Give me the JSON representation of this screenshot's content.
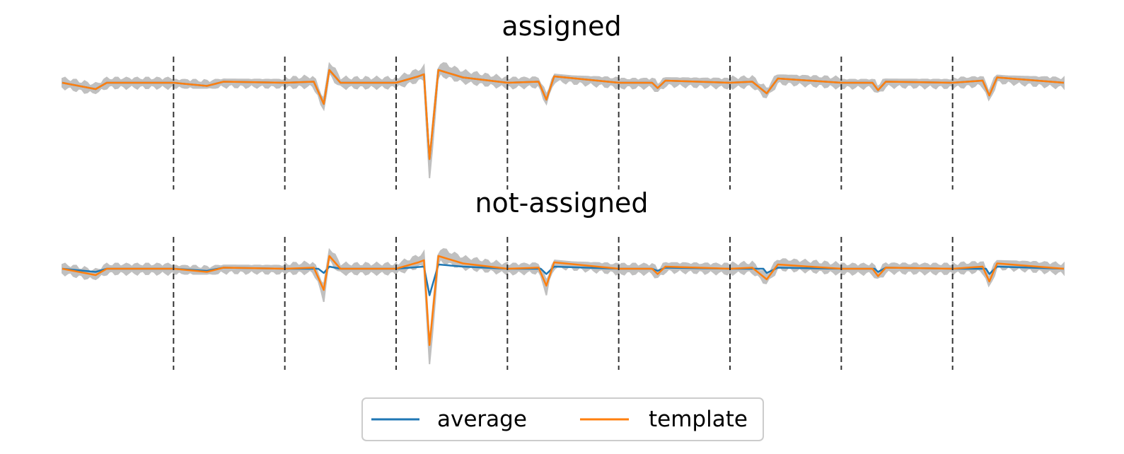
{
  "chart_data": [
    {
      "type": "line",
      "title": "assigned",
      "n_channels": 9,
      "channel_dividers": [
        1,
        2,
        3,
        4,
        5,
        6,
        7,
        8
      ],
      "colors": {
        "average": "#1f77b4",
        "template": "#ff7f0e",
        "traces": "#c0c0c0",
        "dividers": "#333333"
      },
      "ylim": [
        -1.0,
        0.25
      ],
      "series": [
        {
          "name": "average",
          "channels": [
            [
              [
                0.0,
                0
              ],
              [
                0.3,
                -0.06
              ],
              [
                0.4,
                0
              ],
              [
                1,
                0
              ]
            ],
            [
              [
                0.0,
                0
              ],
              [
                0.3,
                -0.03
              ],
              [
                0.45,
                0.01
              ],
              [
                1,
                0
              ]
            ],
            [
              [
                0.0,
                0
              ],
              [
                0.26,
                0.01
              ],
              [
                0.35,
                -0.2
              ],
              [
                0.4,
                0.12
              ],
              [
                0.5,
                0
              ],
              [
                1,
                0
              ]
            ],
            [
              [
                0.0,
                0
              ],
              [
                0.2,
                0.06
              ],
              [
                0.25,
                0.08
              ],
              [
                0.3,
                -0.72
              ],
              [
                0.38,
                0.12
              ],
              [
                0.6,
                0.05
              ],
              [
                1,
                0
              ]
            ],
            [
              [
                0.0,
                0
              ],
              [
                0.28,
                0.01
              ],
              [
                0.35,
                -0.16
              ],
              [
                0.42,
                0.06
              ],
              [
                1,
                0
              ]
            ],
            [
              [
                0.0,
                0
              ],
              [
                0.3,
                0
              ],
              [
                0.35,
                -0.05
              ],
              [
                0.42,
                0.02
              ],
              [
                1,
                0
              ]
            ],
            [
              [
                0.0,
                0
              ],
              [
                0.2,
                0.01
              ],
              [
                0.33,
                -0.1
              ],
              [
                0.43,
                0.04
              ],
              [
                1,
                0
              ]
            ],
            [
              [
                0.0,
                0
              ],
              [
                0.28,
                0
              ],
              [
                0.33,
                -0.07
              ],
              [
                0.4,
                0.01
              ],
              [
                1,
                0
              ]
            ],
            [
              [
                0.0,
                0
              ],
              [
                0.27,
                0.02
              ],
              [
                0.33,
                -0.12
              ],
              [
                0.4,
                0.05
              ],
              [
                1,
                0
              ]
            ]
          ]
        },
        {
          "name": "template",
          "channels": [
            [
              [
                0.0,
                0
              ],
              [
                0.3,
                -0.06
              ],
              [
                0.4,
                0
              ],
              [
                1,
                0
              ]
            ],
            [
              [
                0.0,
                0
              ],
              [
                0.3,
                -0.03
              ],
              [
                0.45,
                0.01
              ],
              [
                1,
                0
              ]
            ],
            [
              [
                0.0,
                0
              ],
              [
                0.26,
                0.01
              ],
              [
                0.35,
                -0.2
              ],
              [
                0.4,
                0.12
              ],
              [
                0.5,
                0
              ],
              [
                1,
                0
              ]
            ],
            [
              [
                0.0,
                0
              ],
              [
                0.2,
                0.06
              ],
              [
                0.25,
                0.08
              ],
              [
                0.3,
                -0.72
              ],
              [
                0.38,
                0.12
              ],
              [
                0.6,
                0.05
              ],
              [
                1,
                0
              ]
            ],
            [
              [
                0.0,
                0
              ],
              [
                0.28,
                0.01
              ],
              [
                0.35,
                -0.16
              ],
              [
                0.42,
                0.06
              ],
              [
                1,
                0
              ]
            ],
            [
              [
                0.0,
                0
              ],
              [
                0.3,
                0
              ],
              [
                0.35,
                -0.05
              ],
              [
                0.42,
                0.02
              ],
              [
                1,
                0
              ]
            ],
            [
              [
                0.0,
                0
              ],
              [
                0.2,
                0.01
              ],
              [
                0.33,
                -0.1
              ],
              [
                0.43,
                0.04
              ],
              [
                1,
                0
              ]
            ],
            [
              [
                0.0,
                0
              ],
              [
                0.28,
                0
              ],
              [
                0.33,
                -0.07
              ],
              [
                0.4,
                0.01
              ],
              [
                1,
                0
              ]
            ],
            [
              [
                0.0,
                0
              ],
              [
                0.27,
                0.02
              ],
              [
                0.33,
                -0.12
              ],
              [
                0.4,
                0.05
              ],
              [
                1,
                0
              ]
            ]
          ]
        }
      ],
      "trace_envelope": [
        [
          0.05,
          -0.1
        ],
        [
          0.03,
          -0.05
        ],
        [
          0.2,
          -0.25
        ],
        [
          0.25,
          -0.9
        ],
        [
          0.05,
          -0.2
        ],
        [
          0.04,
          -0.08
        ],
        [
          0.06,
          -0.2
        ],
        [
          0.03,
          -0.1
        ],
        [
          0.05,
          -0.18
        ]
      ]
    },
    {
      "type": "line",
      "title": "not-assigned",
      "n_channels": 9,
      "channel_dividers": [
        1,
        2,
        3,
        4,
        5,
        6,
        7,
        8
      ],
      "colors": {
        "average": "#1f77b4",
        "template": "#ff7f0e",
        "traces": "#c0c0c0",
        "dividers": "#333333"
      },
      "ylim": [
        -1.0,
        0.25
      ],
      "series": [
        {
          "name": "average",
          "channels": [
            [
              [
                0.0,
                0
              ],
              [
                0.3,
                -0.03
              ],
              [
                0.4,
                0
              ],
              [
                1,
                0
              ]
            ],
            [
              [
                0.0,
                0
              ],
              [
                0.3,
                -0.02
              ],
              [
                0.45,
                0.01
              ],
              [
                1,
                0
              ]
            ],
            [
              [
                0.0,
                0
              ],
              [
                0.3,
                0
              ],
              [
                0.35,
                -0.04
              ],
              [
                0.4,
                0.02
              ],
              [
                0.5,
                0
              ],
              [
                1,
                0
              ]
            ],
            [
              [
                0.0,
                0
              ],
              [
                0.25,
                0.02
              ],
              [
                0.3,
                -0.25
              ],
              [
                0.38,
                0.04
              ],
              [
                0.6,
                0.02
              ],
              [
                1,
                0
              ]
            ],
            [
              [
                0.0,
                0
              ],
              [
                0.3,
                0
              ],
              [
                0.35,
                -0.05
              ],
              [
                0.42,
                0.02
              ],
              [
                1,
                0
              ]
            ],
            [
              [
                0.0,
                0
              ],
              [
                0.3,
                0
              ],
              [
                0.35,
                -0.02
              ],
              [
                0.42,
                0.01
              ],
              [
                1,
                0
              ]
            ],
            [
              [
                0.0,
                0
              ],
              [
                0.3,
                0
              ],
              [
                0.33,
                -0.04
              ],
              [
                0.43,
                0.01
              ],
              [
                1,
                0
              ]
            ],
            [
              [
                0.0,
                0
              ],
              [
                0.3,
                0
              ],
              [
                0.33,
                -0.03
              ],
              [
                0.4,
                0.01
              ],
              [
                1,
                0
              ]
            ],
            [
              [
                0.0,
                0
              ],
              [
                0.3,
                0
              ],
              [
                0.33,
                -0.05
              ],
              [
                0.4,
                0.02
              ],
              [
                1,
                0
              ]
            ]
          ]
        },
        {
          "name": "template",
          "channels": [
            [
              [
                0.0,
                0
              ],
              [
                0.3,
                -0.06
              ],
              [
                0.4,
                0
              ],
              [
                1,
                0
              ]
            ],
            [
              [
                0.0,
                0
              ],
              [
                0.3,
                -0.03
              ],
              [
                0.45,
                0.01
              ],
              [
                1,
                0
              ]
            ],
            [
              [
                0.0,
                0
              ],
              [
                0.26,
                0.01
              ],
              [
                0.35,
                -0.2
              ],
              [
                0.4,
                0.12
              ],
              [
                0.5,
                0
              ],
              [
                1,
                0
              ]
            ],
            [
              [
                0.0,
                0
              ],
              [
                0.2,
                0.06
              ],
              [
                0.25,
                0.08
              ],
              [
                0.3,
                -0.72
              ],
              [
                0.38,
                0.12
              ],
              [
                0.6,
                0.05
              ],
              [
                1,
                0
              ]
            ],
            [
              [
                0.0,
                0
              ],
              [
                0.28,
                0.01
              ],
              [
                0.35,
                -0.16
              ],
              [
                0.42,
                0.06
              ],
              [
                1,
                0
              ]
            ],
            [
              [
                0.0,
                0
              ],
              [
                0.3,
                0
              ],
              [
                0.35,
                -0.05
              ],
              [
                0.42,
                0.02
              ],
              [
                1,
                0
              ]
            ],
            [
              [
                0.0,
                0
              ],
              [
                0.2,
                0.01
              ],
              [
                0.33,
                -0.1
              ],
              [
                0.43,
                0.04
              ],
              [
                1,
                0
              ]
            ],
            [
              [
                0.0,
                0
              ],
              [
                0.28,
                0
              ],
              [
                0.33,
                -0.07
              ],
              [
                0.4,
                0.01
              ],
              [
                1,
                0
              ]
            ],
            [
              [
                0.0,
                0
              ],
              [
                0.27,
                0.02
              ],
              [
                0.33,
                -0.12
              ],
              [
                0.4,
                0.05
              ],
              [
                1,
                0
              ]
            ]
          ]
        }
      ],
      "trace_envelope": [
        [
          0.05,
          -0.1
        ],
        [
          0.03,
          -0.05
        ],
        [
          0.25,
          -0.85
        ],
        [
          0.25,
          -0.9
        ],
        [
          0.05,
          -0.25
        ],
        [
          0.05,
          -0.2
        ],
        [
          0.08,
          -0.3
        ],
        [
          0.05,
          -0.15
        ],
        [
          0.06,
          -0.2
        ]
      ]
    }
  ],
  "legend": {
    "placement": "bottom-center",
    "items": [
      {
        "label": "average",
        "color": "#1f77b4"
      },
      {
        "label": "template",
        "color": "#ff7f0e"
      }
    ]
  }
}
